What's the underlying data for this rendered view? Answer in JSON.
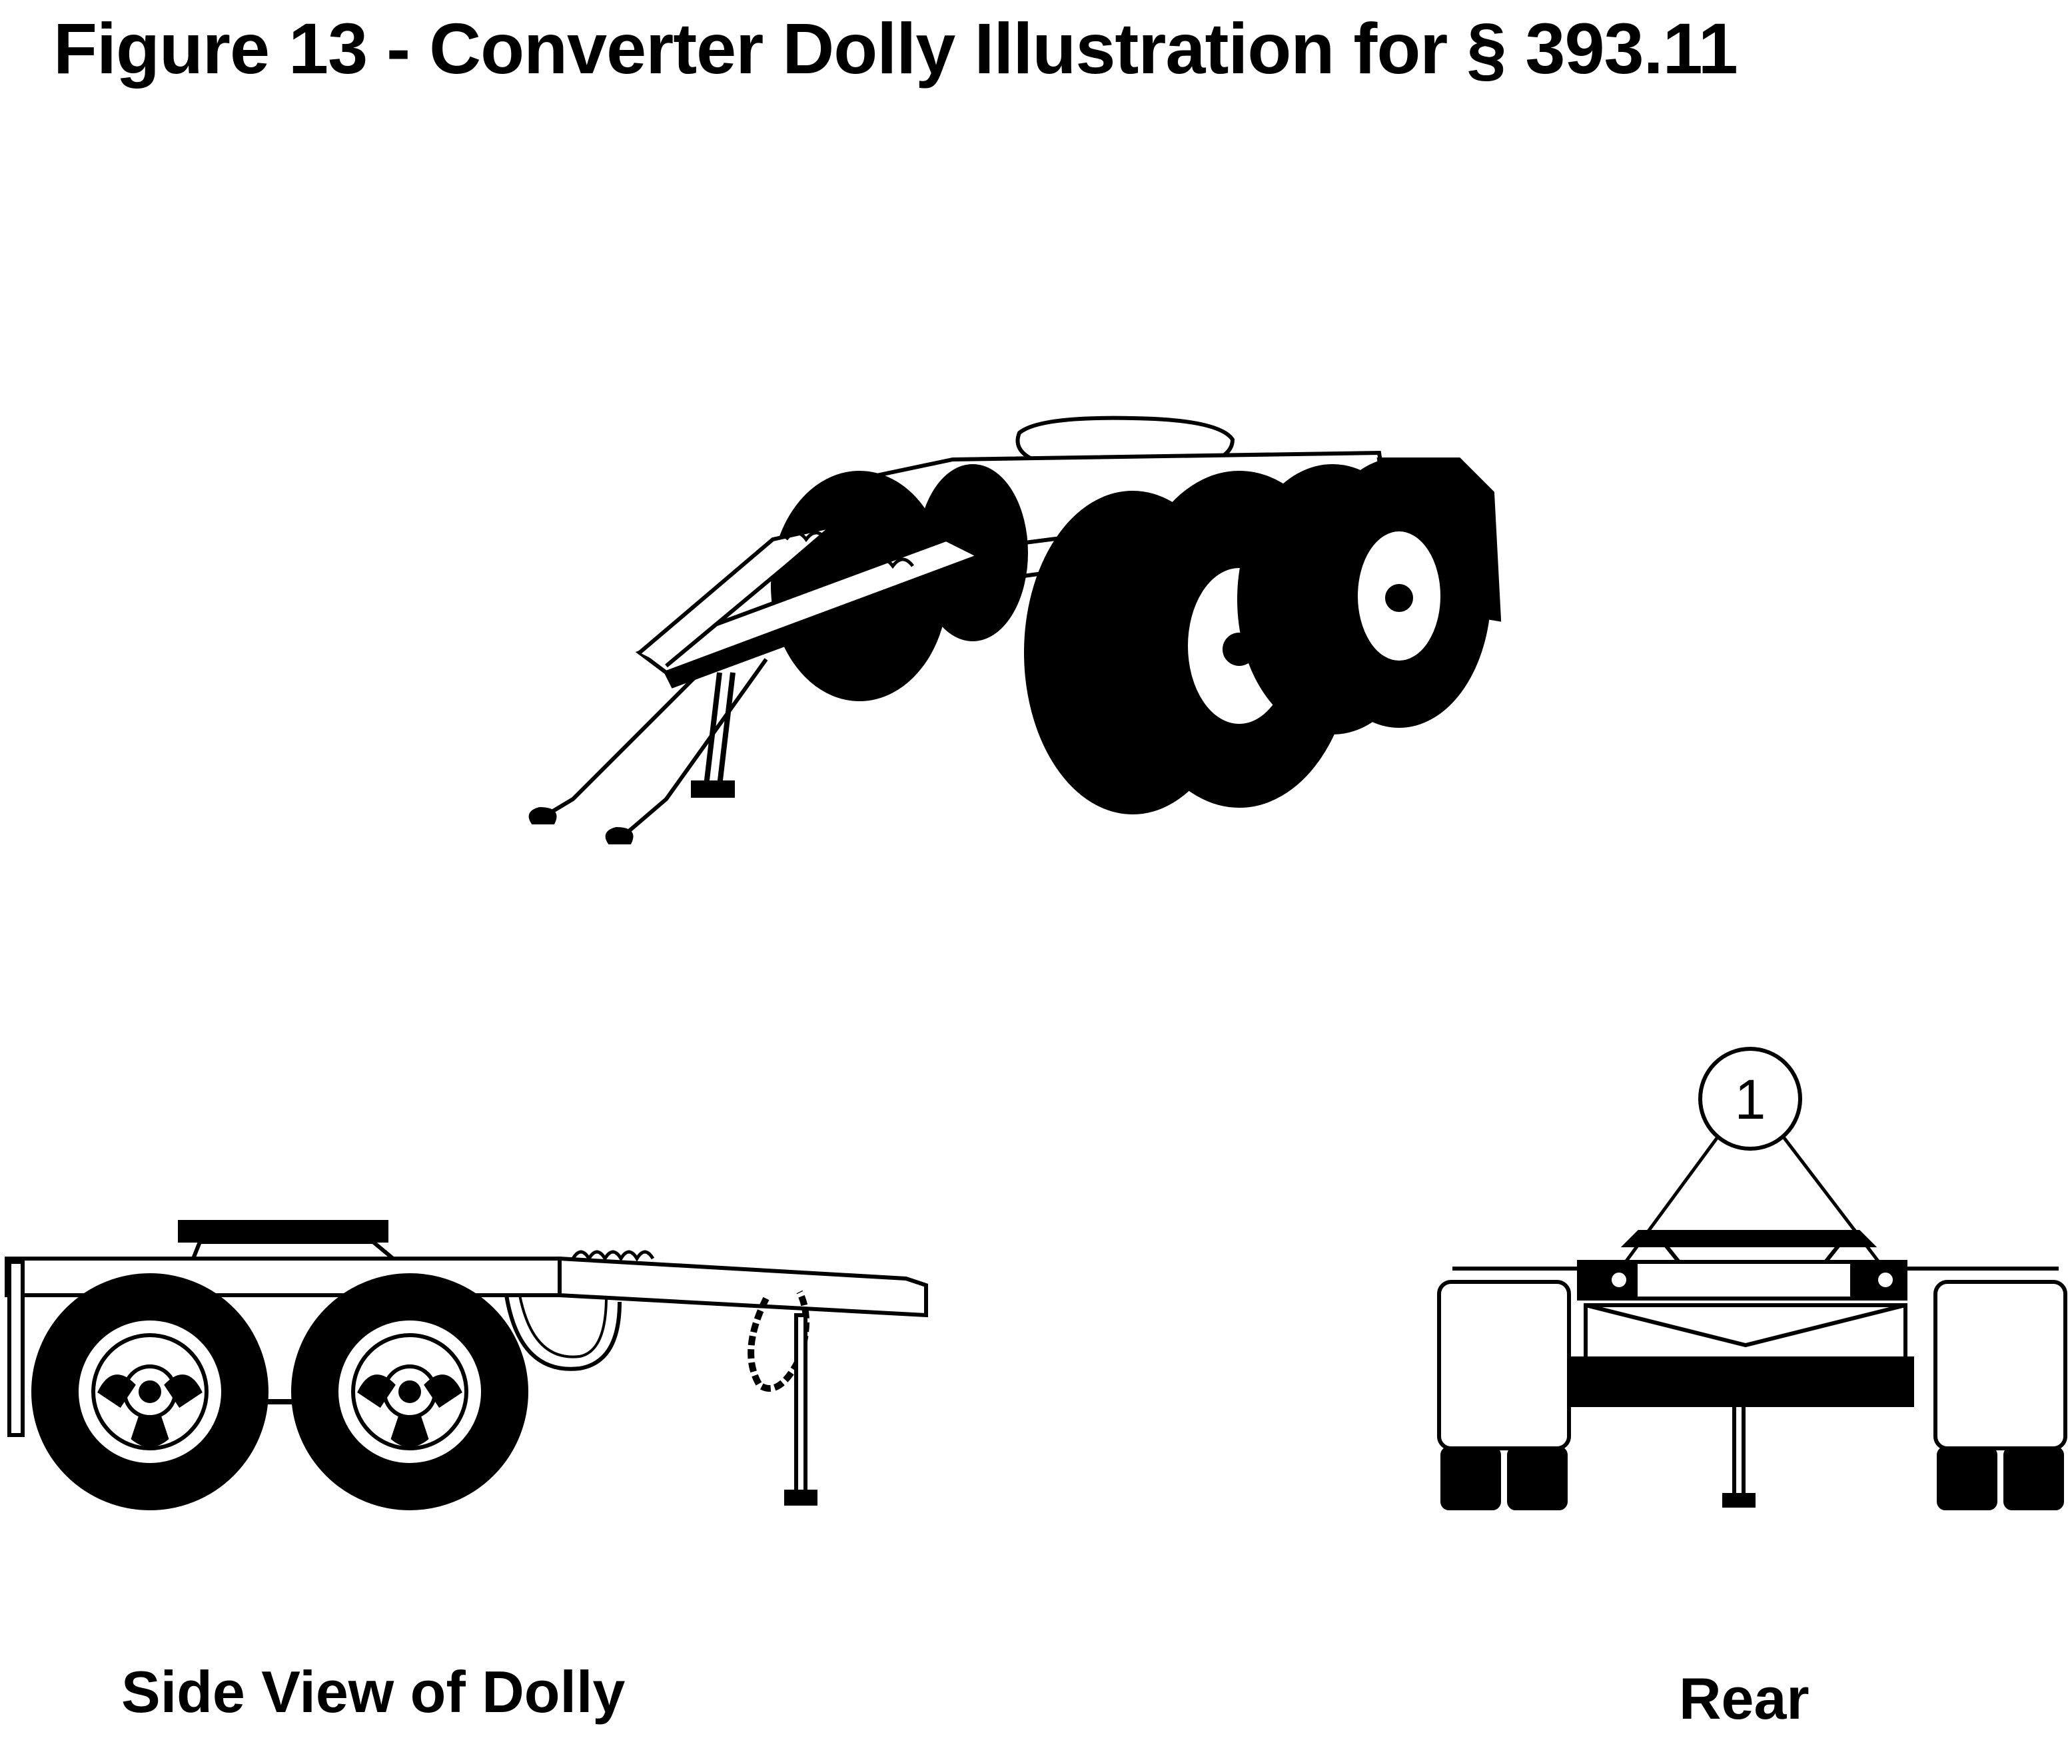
{
  "figure": {
    "title": "Figure 13 - Converter Dolly Illustration for § 393.11"
  },
  "views": {
    "side_caption": "Side View of Dolly",
    "rear_caption": "Rear"
  },
  "callouts": [
    {
      "label": "1"
    }
  ],
  "colors": {
    "ink": "#000000",
    "paper": "#ffffff"
  }
}
